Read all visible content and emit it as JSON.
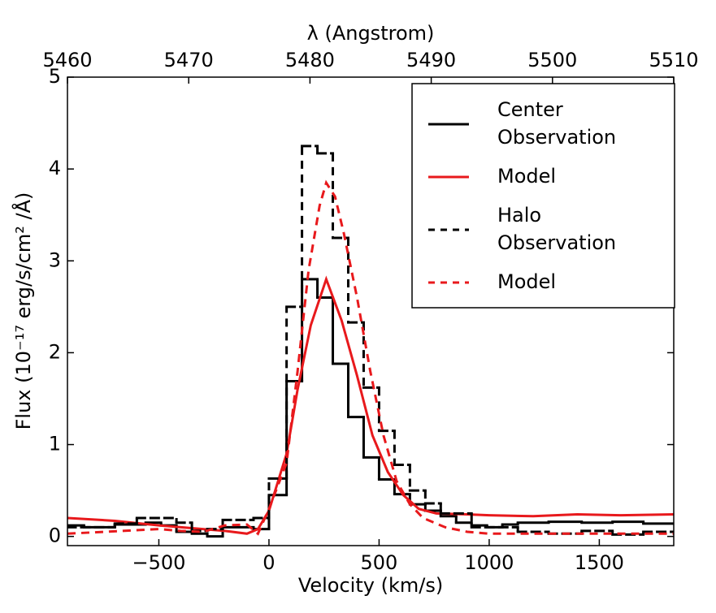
{
  "chart_data": {
    "type": "line",
    "xlabel": "Velocity (km/s)",
    "ylabel": "Flux (10⁻¹⁷ erg/s/cm² /Å)",
    "x2label": "λ (Angstrom)",
    "xlim": [
      -915,
      1838
    ],
    "ylim": [
      -0.1,
      5
    ],
    "x2lim": [
      5460,
      5510
    ],
    "xticks": [
      {
        "value": -500,
        "label": "−500"
      },
      0,
      500,
      1000,
      1500
    ],
    "yticks": [
      0,
      1,
      2,
      3,
      4,
      5
    ],
    "x2ticks": [
      5460,
      5470,
      5480,
      5490,
      5500,
      5510
    ],
    "legend": "upper right",
    "series": [
      {
        "name": "Center\nObservation",
        "color": "#000000",
        "linestyle": "solid",
        "drawstyle": "steps",
        "x": [
          -915,
          -840,
          -700,
          -560,
          -490,
          -420,
          -350,
          -280,
          -210,
          -70,
          0,
          80,
          150,
          220,
          290,
          360,
          430,
          500,
          570,
          640,
          710,
          780,
          850,
          920,
          990,
          1060,
          1130,
          1270,
          1420,
          1560,
          1700
        ],
        "values": [
          0.12,
          0.1,
          0.13,
          0.15,
          0.12,
          0.05,
          0.03,
          0.0,
          0.1,
          0.08,
          0.45,
          1.69,
          2.8,
          2.6,
          1.88,
          1.3,
          0.86,
          0.62,
          0.46,
          0.35,
          0.28,
          0.22,
          0.15,
          0.12,
          0.1,
          0.13,
          0.15,
          0.16,
          0.15,
          0.16,
          0.14
        ]
      },
      {
        "name": "Model",
        "color": "#e8191c",
        "linestyle": "solid",
        "drawstyle": "line",
        "x": [
          -915,
          -700,
          -500,
          -300,
          -200,
          -100,
          -50,
          0,
          80,
          130,
          190,
          260,
          330,
          400,
          470,
          540,
          610,
          680,
          760,
          900,
          1000,
          1200,
          1400,
          1600,
          1838
        ],
        "values": [
          0.2,
          0.17,
          0.12,
          0.08,
          0.06,
          0.03,
          0.08,
          0.28,
          0.9,
          1.6,
          2.3,
          2.8,
          2.35,
          1.75,
          1.1,
          0.7,
          0.45,
          0.3,
          0.25,
          0.24,
          0.23,
          0.22,
          0.24,
          0.23,
          0.24
        ]
      },
      {
        "name": "Halo\nObservation",
        "color": "#000000",
        "linestyle": "dashed",
        "drawstyle": "steps",
        "x": [
          -915,
          -700,
          -600,
          -420,
          -350,
          -280,
          -210,
          -70,
          0,
          80,
          150,
          220,
          290,
          360,
          430,
          500,
          570,
          640,
          710,
          780,
          920,
          1130,
          1270,
          1420,
          1560,
          1700
        ],
        "values": [
          0.1,
          0.14,
          0.2,
          0.15,
          0.06,
          0.08,
          0.18,
          0.2,
          0.63,
          2.5,
          4.25,
          4.17,
          3.25,
          2.33,
          1.62,
          1.15,
          0.78,
          0.5,
          0.36,
          0.25,
          0.1,
          0.05,
          0.03,
          0.06,
          0.02,
          0.05
        ]
      },
      {
        "name": "Model",
        "color": "#e8191c",
        "linestyle": "dashed",
        "drawstyle": "line",
        "x": [
          -915,
          -500,
          -400,
          -300,
          -200,
          -100,
          -50,
          0,
          80,
          130,
          180,
          230,
          260,
          300,
          340,
          400,
          460,
          520,
          580,
          640,
          700,
          800,
          900,
          1000,
          1838
        ],
        "values": [
          0.03,
          0.08,
          0.06,
          0.05,
          0.12,
          0.13,
          0.03,
          0.3,
          0.8,
          1.8,
          2.9,
          3.6,
          3.85,
          3.7,
          3.3,
          2.6,
          1.8,
          1.1,
          0.6,
          0.35,
          0.2,
          0.1,
          0.05,
          0.03,
          0.03
        ]
      }
    ]
  }
}
